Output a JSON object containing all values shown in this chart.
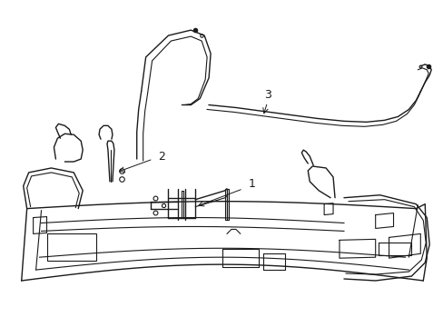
{
  "background_color": "#ffffff",
  "line_color": "#1a1a1a",
  "label_1": "1",
  "label_2": "2",
  "label_3": "3",
  "figsize": [
    4.89,
    3.6
  ],
  "dpi": 100
}
